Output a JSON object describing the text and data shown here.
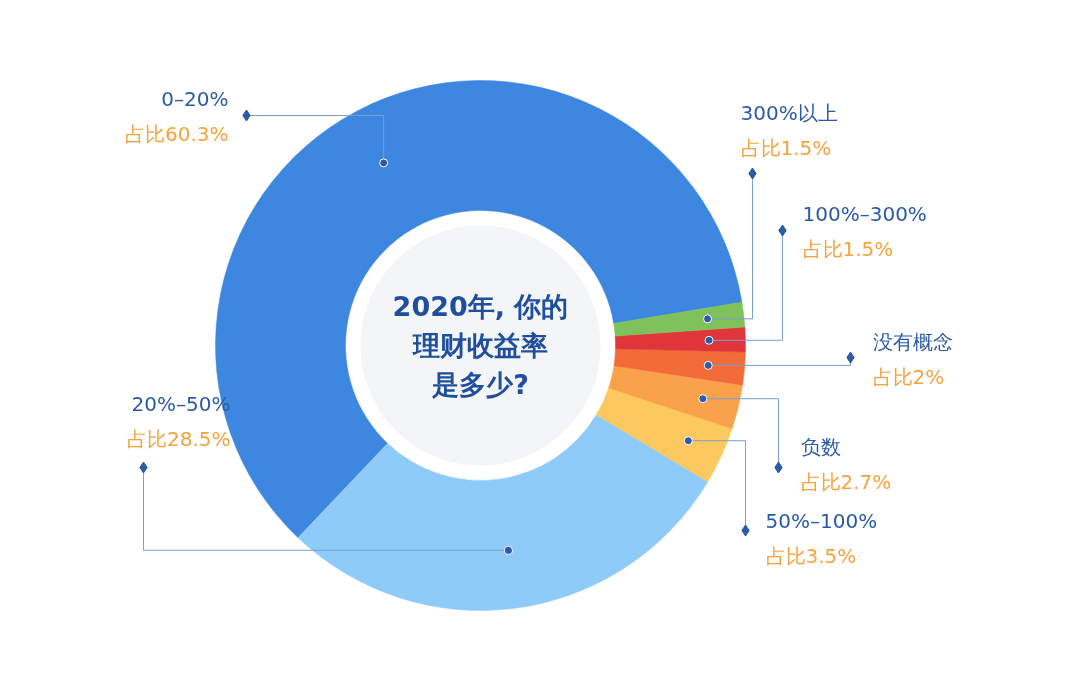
{
  "chart_data": {
    "type": "donut",
    "title": "2020年, 你的理财收益率是多少?",
    "categories": [
      "0–20%",
      "20%–50%",
      "50%–100%",
      "负数",
      "没有概念",
      "100%–300%",
      "300%以上"
    ],
    "values": [
      60.3,
      28.5,
      3.5,
      2.7,
      2,
      1.5,
      1.5
    ],
    "colors": [
      "#3d87e0",
      "#8ecbf9",
      "#fbc95e",
      "#f9a24b",
      "#f26b38",
      "#e0363a",
      "#7fc15a"
    ],
    "value_labels": [
      "占比60.3%",
      "占比28.5%",
      "占比3.5%",
      "占比2.7%",
      "占比2%",
      "占比1.5%",
      "占比1.5%"
    ]
  }
}
